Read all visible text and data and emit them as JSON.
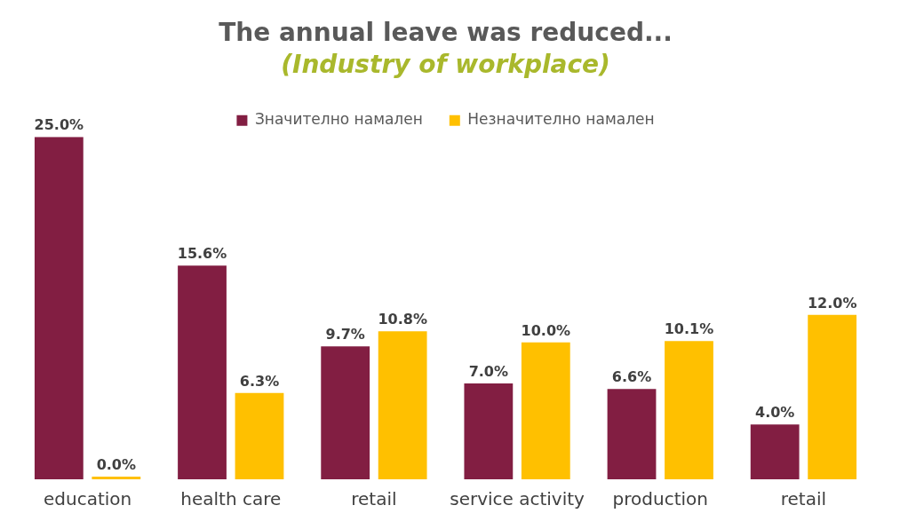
{
  "chart_data": {
    "type": "bar",
    "title": "The annual leave was reduced...",
    "subtitle": "(Industry of workplace)",
    "categories": [
      "education",
      "health care",
      "retail",
      "service activity",
      "production",
      "retail"
    ],
    "series": [
      {
        "name": "Значително намален",
        "color": "#821e42",
        "values": [
          25.0,
          15.6,
          9.7,
          7.0,
          6.6,
          4.0
        ],
        "value_labels": [
          "25.0%",
          "15.6%",
          "9.7%",
          "7.0%",
          "6.6%",
          "4.0%"
        ]
      },
      {
        "name": "Незначително намален",
        "color": "#ffc000",
        "values": [
          0.0,
          6.3,
          10.8,
          10.0,
          10.1,
          12.0
        ],
        "value_labels": [
          "0.0%",
          "6.3%",
          "10.8%",
          "10.0%",
          "10.1%",
          "12.0%"
        ]
      }
    ],
    "legend": "top",
    "grid": false
  }
}
